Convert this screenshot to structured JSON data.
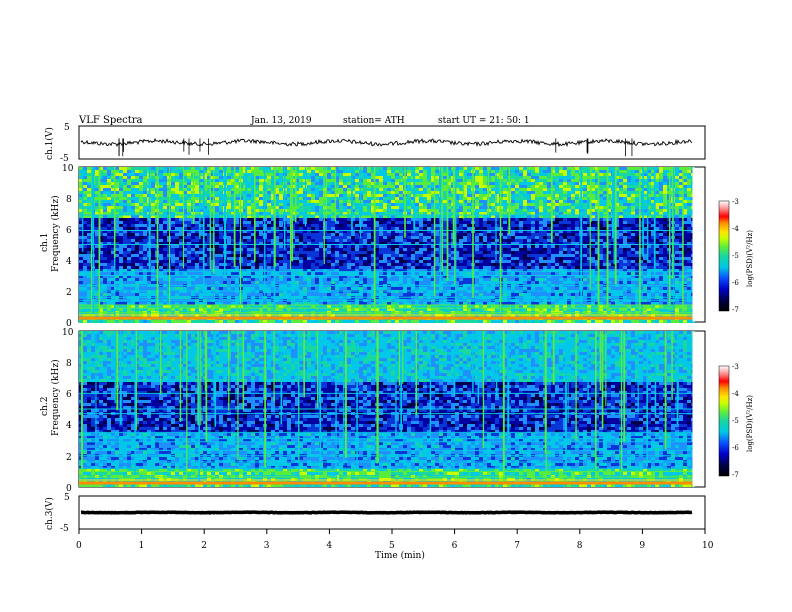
{
  "header": {
    "title": "VLF  Spectra",
    "date": "Jan. 13, 2019",
    "station": "station= ATH",
    "start": "start  UT  =   21: 50: 1"
  },
  "colors": {
    "waveform": "#000000",
    "colormap": [
      "#000000",
      "#00004a",
      "#0000a0",
      "#0a35d8",
      "#1e90ff",
      "#00c8e6",
      "#19d7a0",
      "#5aec3c",
      "#c8ff00",
      "#ffe600",
      "#ff8c00",
      "#ff0000",
      "#ff6464",
      "#ffc0c0",
      "#ffffff"
    ]
  },
  "chart_data": [
    {
      "type": "line",
      "name": "ch1-waveform",
      "ylabel": "ch.1(V)",
      "ylim": [
        -5,
        5
      ],
      "yticks": [
        "5",
        "-5"
      ],
      "xlim": [
        0,
        10
      ],
      "baseline_v": 0,
      "noise_amplitude_v": 1.2
    },
    {
      "type": "heatmap",
      "name": "ch1-spectrogram",
      "ylabel_line1": "ch.1",
      "ylabel_line2": "Frequency  (kHz)",
      "ylim": [
        0,
        10
      ],
      "yticks": [
        "0",
        "2",
        "4",
        "6",
        "8",
        "10"
      ],
      "xlim": [
        0,
        10
      ],
      "data_end_min": 9.8,
      "colorbar": {
        "label": "log(PSD)(V²/Hz)",
        "range": [
          -7,
          -3
        ],
        "ticks": [
          "-3",
          "-4",
          "-5",
          "-6",
          "-7"
        ]
      },
      "lines_khz": [
        0.2,
        0.45,
        0.6,
        0.9,
        1.1,
        1.4,
        1.6,
        2.0,
        2.35,
        3.0,
        3.25,
        5.0,
        5.9,
        6.9
      ]
    },
    {
      "type": "heatmap",
      "name": "ch2-spectrogram",
      "ylabel_line1": "ch.2",
      "ylabel_line2": "Frequency  (kHz)",
      "ylim": [
        0,
        10
      ],
      "yticks": [
        "0",
        "2",
        "4",
        "6",
        "8",
        "10"
      ],
      "xlim": [
        0,
        10
      ],
      "data_end_min": 9.8,
      "colorbar": {
        "label": "log(PSD)(V²/Hz)",
        "range": [
          -7,
          -3
        ],
        "ticks": [
          "-3",
          "-4",
          "-5",
          "-6",
          "-7"
        ]
      },
      "lines_khz": [
        0.2,
        0.45,
        0.65,
        1.0,
        1.2,
        1.6,
        2.0,
        2.35,
        2.9,
        3.1,
        3.5,
        4.7,
        5.0,
        6.0
      ]
    },
    {
      "type": "line",
      "name": "ch3-waveform",
      "ylabel": "ch.3(V)",
      "ylim": [
        -5,
        5
      ],
      "yticks": [
        "5",
        "-5"
      ],
      "xlim": [
        0,
        10
      ],
      "baseline_v": 0,
      "noise_amplitude_v": 0.15
    }
  ],
  "xaxis": {
    "label": "Time  (min)",
    "ticks": [
      "0",
      "1",
      "2",
      "3",
      "4",
      "5",
      "6",
      "7",
      "8",
      "9",
      "10"
    ]
  }
}
